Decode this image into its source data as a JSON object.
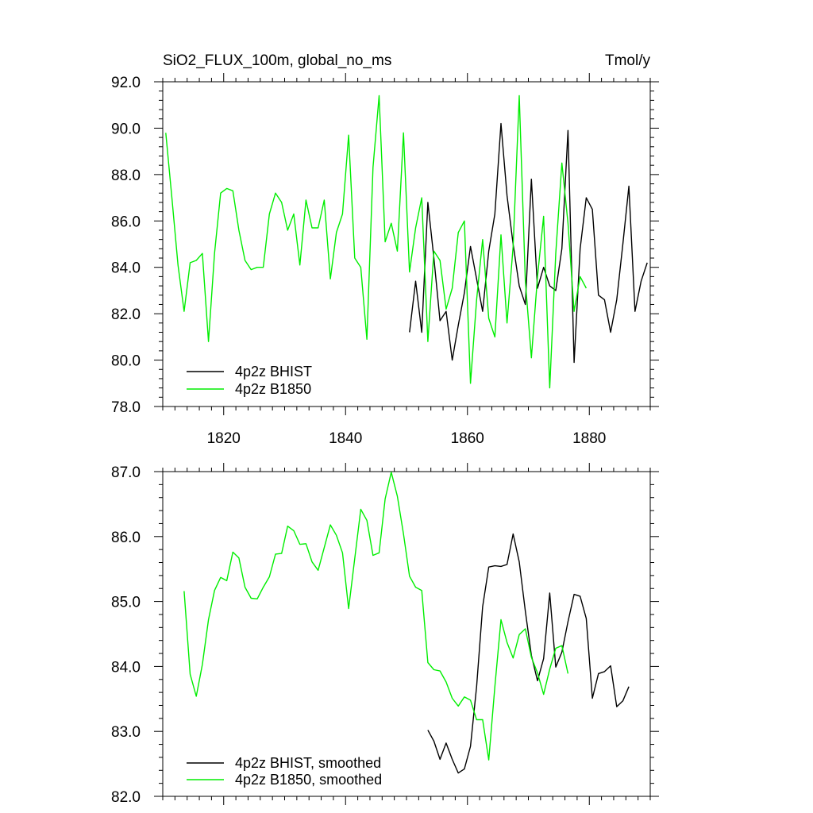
{
  "chart_data": [
    {
      "type": "line",
      "title_left": "SiO2_FLUX_100m, global_no_ms",
      "title_right": "Tmol/y",
      "xlim": [
        1810,
        1890
      ],
      "ylim": [
        78,
        92
      ],
      "xticks": [
        1820,
        1840,
        1860,
        1880
      ],
      "xtick_labels": [
        "1820",
        "1840",
        "1860",
        "1880"
      ],
      "yticks": [
        78,
        80,
        82,
        84,
        86,
        88,
        90,
        92
      ],
      "ytick_labels": [
        "78.0",
        "80.0",
        "82.0",
        "84.0",
        "86.0",
        "88.0",
        "90.0",
        "92.0"
      ],
      "legend_position": "bottom-left",
      "series": [
        {
          "name": "4p2z BHIST",
          "color": "#000000",
          "x": [
            1850.5,
            1851.5,
            1852.5,
            1853.5,
            1854.5,
            1855.5,
            1856.5,
            1857.5,
            1858.5,
            1859.5,
            1860.5,
            1861.5,
            1862.5,
            1863.5,
            1864.5,
            1865.5,
            1866.5,
            1867.5,
            1868.5,
            1869.5,
            1870.5,
            1871.5,
            1872.5,
            1873.5,
            1874.5,
            1875.5,
            1876.5,
            1877.5,
            1878.5,
            1879.5,
            1880.5,
            1881.5,
            1882.5,
            1883.5,
            1884.5,
            1885.5,
            1886.5,
            1887.5,
            1888.5,
            1889.5
          ],
          "y": [
            81.2,
            83.4,
            81.2,
            86.8,
            84.4,
            81.7,
            82.1,
            80.0,
            81.5,
            82.9,
            84.9,
            83.5,
            82.1,
            84.7,
            86.3,
            90.2,
            87.1,
            85.0,
            83.2,
            82.4,
            87.8,
            83.1,
            84.0,
            83.2,
            83.0,
            84.8,
            89.9,
            79.9,
            84.8,
            87.0,
            86.5,
            82.8,
            82.6,
            81.2,
            82.6,
            85.0,
            87.5,
            82.1,
            83.4,
            84.2
          ]
        },
        {
          "name": "4p2z B1850",
          "color": "#00ee00",
          "x": [
            1810.5,
            1811.5,
            1812.5,
            1813.5,
            1814.5,
            1815.5,
            1816.5,
            1817.5,
            1818.5,
            1819.5,
            1820.5,
            1821.5,
            1822.5,
            1823.5,
            1824.5,
            1825.5,
            1826.5,
            1827.5,
            1828.5,
            1829.5,
            1830.5,
            1831.5,
            1832.5,
            1833.5,
            1834.5,
            1835.5,
            1836.5,
            1837.5,
            1838.5,
            1839.5,
            1840.5,
            1841.5,
            1842.5,
            1843.5,
            1844.5,
            1845.5,
            1846.5,
            1847.5,
            1848.5,
            1849.5,
            1850.5,
            1851.5,
            1852.5,
            1853.5,
            1854.5,
            1855.5,
            1856.5,
            1857.5,
            1858.5,
            1859.5,
            1860.5,
            1861.5,
            1862.5,
            1863.5,
            1864.5,
            1865.5,
            1866.5,
            1867.5,
            1868.5,
            1869.5,
            1870.5,
            1871.5,
            1872.5,
            1873.5,
            1874.5,
            1875.5,
            1876.5,
            1877.5,
            1878.5,
            1879.5
          ],
          "y": [
            89.8,
            87.0,
            84.1,
            82.1,
            84.2,
            84.3,
            84.6,
            80.8,
            84.6,
            87.2,
            87.4,
            87.3,
            85.6,
            84.3,
            83.9,
            84.0,
            84.0,
            86.3,
            87.2,
            86.8,
            85.6,
            86.3,
            84.1,
            86.9,
            85.7,
            85.7,
            86.9,
            83.5,
            85.5,
            86.3,
            89.7,
            84.4,
            84.0,
            80.9,
            88.3,
            91.4,
            85.1,
            85.9,
            84.7,
            89.8,
            83.8,
            85.7,
            87.0,
            80.8,
            84.7,
            84.3,
            82.2,
            83.1,
            85.5,
            86.0,
            79.0,
            82.6,
            85.2,
            81.8,
            81.0,
            85.4,
            81.6,
            84.9,
            91.4,
            83.4,
            80.1,
            83.6,
            86.2,
            78.8,
            84.6,
            88.5,
            85.9,
            82.1,
            83.6,
            83.1
          ]
        }
      ]
    },
    {
      "type": "line",
      "xlim": [
        1810,
        1890
      ],
      "ylim": [
        82,
        87
      ],
      "xticks": [
        1820,
        1840,
        1860,
        1880
      ],
      "yticks": [
        82,
        83,
        84,
        85,
        86,
        87
      ],
      "ytick_labels": [
        "82.0",
        "83.0",
        "84.0",
        "85.0",
        "86.0",
        "87.0"
      ],
      "legend_position": "bottom-left",
      "series": [
        {
          "name": "4p2z BHIST, smoothed",
          "color": "#000000",
          "x": [
            1853.5,
            1854.5,
            1855.5,
            1856.5,
            1857.5,
            1858.5,
            1859.5,
            1860.5,
            1861.5,
            1862.5,
            1863.5,
            1864.5,
            1865.5,
            1866.5,
            1867.5,
            1868.5,
            1869.5,
            1870.5,
            1871.5,
            1872.5,
            1873.5,
            1874.5,
            1875.5,
            1876.5,
            1877.5,
            1878.5,
            1879.5,
            1880.5,
            1881.5,
            1882.5,
            1883.5,
            1884.5,
            1885.5,
            1886.5
          ],
          "y": [
            83.02,
            82.85,
            82.57,
            82.82,
            82.57,
            82.36,
            82.42,
            82.77,
            83.69,
            84.92,
            85.53,
            85.55,
            85.54,
            85.57,
            86.04,
            85.61,
            84.85,
            84.17,
            83.78,
            84.12,
            85.13,
            83.99,
            84.22,
            84.69,
            85.11,
            85.08,
            84.74,
            83.51,
            83.89,
            83.92,
            84.01,
            83.38,
            83.47,
            83.69
          ]
        },
        {
          "name": "4p2z B1850, smoothed",
          "color": "#00ee00",
          "x": [
            1813.5,
            1814.5,
            1815.5,
            1816.5,
            1817.5,
            1818.5,
            1819.5,
            1820.5,
            1821.5,
            1822.5,
            1823.5,
            1824.5,
            1825.5,
            1826.5,
            1827.5,
            1828.5,
            1829.5,
            1830.5,
            1831.5,
            1832.5,
            1833.5,
            1834.5,
            1835.5,
            1836.5,
            1837.5,
            1838.5,
            1839.5,
            1840.5,
            1841.5,
            1842.5,
            1843.5,
            1844.5,
            1845.5,
            1846.5,
            1847.5,
            1848.5,
            1849.5,
            1850.5,
            1851.5,
            1852.5,
            1853.5,
            1854.5,
            1855.5,
            1856.5,
            1857.5,
            1858.5,
            1859.5,
            1860.5,
            1861.5,
            1862.5,
            1863.5,
            1864.5,
            1865.5,
            1866.5,
            1867.5,
            1868.5,
            1869.5,
            1870.5,
            1871.5,
            1872.5,
            1873.5,
            1874.5,
            1875.5,
            1876.5
          ],
          "y": [
            85.16,
            83.88,
            83.54,
            84.03,
            84.72,
            85.17,
            85.37,
            85.32,
            85.76,
            85.67,
            85.22,
            85.05,
            85.04,
            85.22,
            85.38,
            85.73,
            85.74,
            86.16,
            86.09,
            85.88,
            85.89,
            85.61,
            85.48,
            85.83,
            86.18,
            86.02,
            85.75,
            84.89,
            85.66,
            86.42,
            86.25,
            85.71,
            85.75,
            86.58,
            86.99,
            86.62,
            86.04,
            85.39,
            85.22,
            85.17,
            84.06,
            83.95,
            83.93,
            83.76,
            83.51,
            83.39,
            83.53,
            83.48,
            83.18,
            83.18,
            82.56,
            83.69,
            84.72,
            84.37,
            84.13,
            84.49,
            84.58,
            84.14,
            83.9,
            83.57,
            83.96,
            84.28,
            84.32,
            83.89
          ]
        }
      ]
    }
  ]
}
